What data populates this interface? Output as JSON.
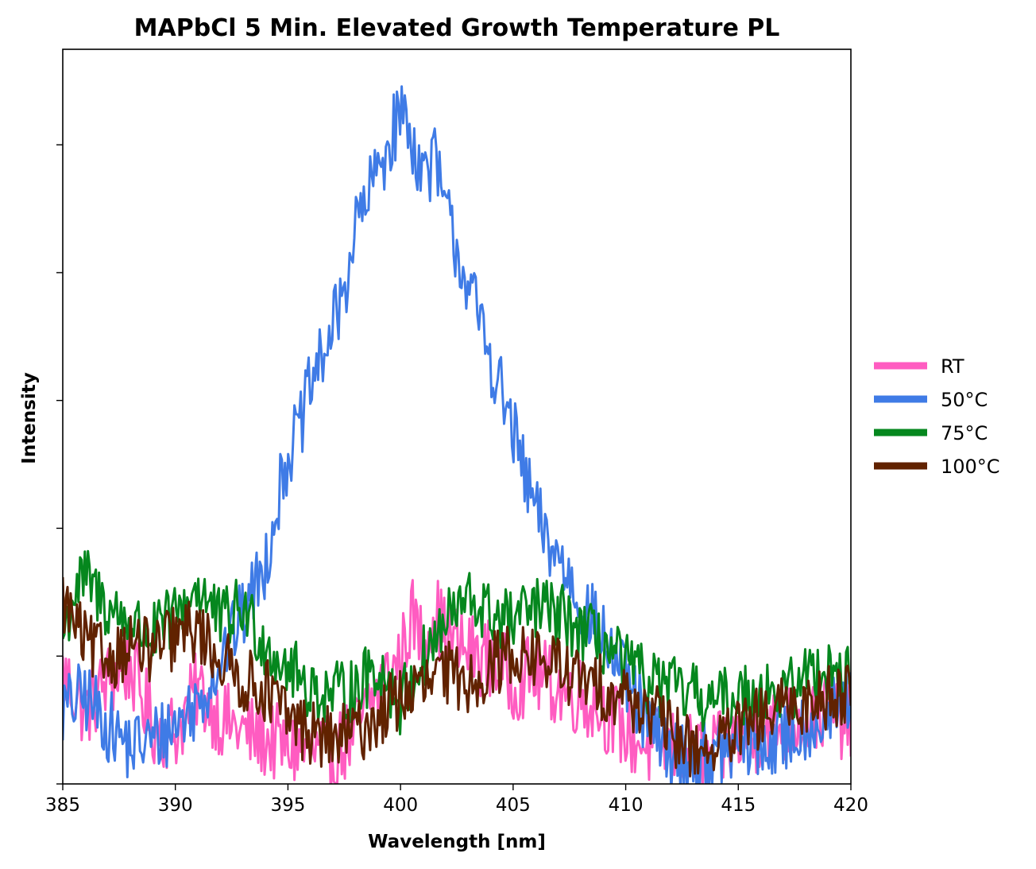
{
  "chart_data": {
    "type": "line",
    "title": "MAPbCl 5 Min. Elevated Growth Temperature PL",
    "xlabel": "Wavelength [nm]",
    "ylabel": "Intensity",
    "xlim": [
      385,
      420
    ],
    "ylim": [
      0,
      1
    ],
    "x_ticks": [
      "385",
      "390",
      "395",
      "400",
      "405",
      "410",
      "415",
      "420"
    ],
    "x_tick_values": [
      385,
      390,
      395,
      400,
      405,
      410,
      415,
      420
    ],
    "y_tick_values": [
      0.0,
      0.174,
      0.348,
      0.522,
      0.696,
      0.87
    ],
    "y_tick_labels_shown": false,
    "grid": false,
    "legend_position": "right-center",
    "series": [
      {
        "name": "RT",
        "color": "#ff5cc1",
        "points": [
          [
            385.0,
            0.15
          ],
          [
            386.0,
            0.1
          ],
          [
            387.0,
            0.14
          ],
          [
            388.0,
            0.16
          ],
          [
            389.0,
            0.08
          ],
          [
            390.0,
            0.07
          ],
          [
            391.0,
            0.13
          ],
          [
            392.0,
            0.09
          ],
          [
            393.0,
            0.07
          ],
          [
            394.0,
            0.06
          ],
          [
            395.0,
            0.05
          ],
          [
            396.0,
            0.04
          ],
          [
            397.0,
            0.04
          ],
          [
            398.0,
            0.07
          ],
          [
            399.0,
            0.13
          ],
          [
            400.0,
            0.17
          ],
          [
            400.5,
            0.23
          ],
          [
            401.0,
            0.19
          ],
          [
            401.5,
            0.24
          ],
          [
            402.0,
            0.2
          ],
          [
            403.0,
            0.18
          ],
          [
            404.0,
            0.17
          ],
          [
            405.0,
            0.14
          ],
          [
            406.0,
            0.15
          ],
          [
            407.0,
            0.13
          ],
          [
            408.0,
            0.12
          ],
          [
            409.0,
            0.1
          ],
          [
            410.0,
            0.07
          ],
          [
            411.0,
            0.05
          ],
          [
            412.0,
            0.05
          ],
          [
            413.0,
            0.04
          ],
          [
            414.0,
            0.04
          ],
          [
            415.0,
            0.06
          ],
          [
            416.0,
            0.07
          ],
          [
            417.0,
            0.08
          ],
          [
            418.0,
            0.09
          ],
          [
            419.0,
            0.1
          ],
          [
            420.0,
            0.08
          ]
        ]
      },
      {
        "name": "50°C",
        "color": "#3f7be6",
        "points": [
          [
            385.0,
            0.1
          ],
          [
            386.0,
            0.12
          ],
          [
            387.0,
            0.08
          ],
          [
            388.0,
            0.05
          ],
          [
            389.0,
            0.06
          ],
          [
            390.0,
            0.08
          ],
          [
            391.0,
            0.11
          ],
          [
            392.0,
            0.17
          ],
          [
            393.0,
            0.23
          ],
          [
            394.0,
            0.3
          ],
          [
            394.5,
            0.38
          ],
          [
            395.0,
            0.45
          ],
          [
            395.5,
            0.48
          ],
          [
            396.0,
            0.54
          ],
          [
            397.0,
            0.62
          ],
          [
            397.5,
            0.67
          ],
          [
            398.0,
            0.76
          ],
          [
            398.5,
            0.79
          ],
          [
            399.0,
            0.84
          ],
          [
            399.5,
            0.87
          ],
          [
            400.0,
            0.92
          ],
          [
            400.5,
            0.88
          ],
          [
            401.0,
            0.83
          ],
          [
            401.5,
            0.85
          ],
          [
            402.0,
            0.78
          ],
          [
            403.0,
            0.68
          ],
          [
            404.0,
            0.58
          ],
          [
            405.0,
            0.48
          ],
          [
            405.5,
            0.42
          ],
          [
            406.0,
            0.37
          ],
          [
            406.5,
            0.33
          ],
          [
            407.0,
            0.31
          ],
          [
            408.0,
            0.25
          ],
          [
            409.0,
            0.2
          ],
          [
            410.0,
            0.14
          ],
          [
            411.0,
            0.08
          ],
          [
            412.0,
            0.04
          ],
          [
            413.0,
            0.03
          ],
          [
            414.0,
            0.04
          ],
          [
            415.0,
            0.05
          ],
          [
            416.0,
            0.05
          ],
          [
            417.0,
            0.06
          ],
          [
            418.0,
            0.08
          ],
          [
            419.0,
            0.09
          ],
          [
            420.0,
            0.12
          ]
        ]
      },
      {
        "name": "75°C",
        "color": "#05871e",
        "points": [
          [
            385.0,
            0.2
          ],
          [
            385.5,
            0.26
          ],
          [
            386.0,
            0.28
          ],
          [
            387.0,
            0.24
          ],
          [
            388.0,
            0.22
          ],
          [
            389.0,
            0.2
          ],
          [
            390.0,
            0.23
          ],
          [
            391.0,
            0.27
          ],
          [
            392.0,
            0.22
          ],
          [
            393.0,
            0.24
          ],
          [
            394.0,
            0.19
          ],
          [
            395.0,
            0.16
          ],
          [
            396.0,
            0.13
          ],
          [
            397.0,
            0.12
          ],
          [
            398.0,
            0.13
          ],
          [
            399.0,
            0.16
          ],
          [
            400.0,
            0.11
          ],
          [
            401.0,
            0.17
          ],
          [
            402.0,
            0.22
          ],
          [
            403.0,
            0.25
          ],
          [
            404.0,
            0.23
          ],
          [
            405.0,
            0.22
          ],
          [
            406.0,
            0.24
          ],
          [
            407.0,
            0.23
          ],
          [
            408.0,
            0.21
          ],
          [
            409.0,
            0.19
          ],
          [
            410.0,
            0.16
          ],
          [
            411.0,
            0.14
          ],
          [
            412.0,
            0.13
          ],
          [
            413.0,
            0.12
          ],
          [
            414.0,
            0.11
          ],
          [
            415.0,
            0.12
          ],
          [
            416.0,
            0.13
          ],
          [
            417.0,
            0.12
          ],
          [
            418.0,
            0.15
          ],
          [
            419.0,
            0.16
          ],
          [
            420.0,
            0.14
          ]
        ]
      },
      {
        "name": "100°C",
        "color": "#612200",
        "points": [
          [
            385.0,
            0.25
          ],
          [
            386.0,
            0.19
          ],
          [
            387.0,
            0.17
          ],
          [
            388.0,
            0.19
          ],
          [
            389.0,
            0.18
          ],
          [
            390.0,
            0.2
          ],
          [
            391.0,
            0.21
          ],
          [
            392.0,
            0.17
          ],
          [
            393.0,
            0.14
          ],
          [
            394.0,
            0.13
          ],
          [
            395.0,
            0.09
          ],
          [
            396.0,
            0.07
          ],
          [
            397.0,
            0.06
          ],
          [
            398.0,
            0.07
          ],
          [
            399.0,
            0.09
          ],
          [
            400.0,
            0.12
          ],
          [
            401.0,
            0.13
          ],
          [
            402.0,
            0.15
          ],
          [
            403.0,
            0.14
          ],
          [
            404.0,
            0.16
          ],
          [
            405.0,
            0.18
          ],
          [
            406.0,
            0.17
          ],
          [
            407.0,
            0.16
          ],
          [
            408.0,
            0.14
          ],
          [
            409.0,
            0.13
          ],
          [
            410.0,
            0.12
          ],
          [
            411.0,
            0.1
          ],
          [
            412.0,
            0.07
          ],
          [
            413.0,
            0.05
          ],
          [
            414.0,
            0.05
          ],
          [
            415.0,
            0.07
          ],
          [
            416.0,
            0.09
          ],
          [
            417.0,
            0.1
          ],
          [
            418.0,
            0.11
          ],
          [
            419.0,
            0.12
          ],
          [
            420.0,
            0.13
          ]
        ]
      }
    ]
  }
}
